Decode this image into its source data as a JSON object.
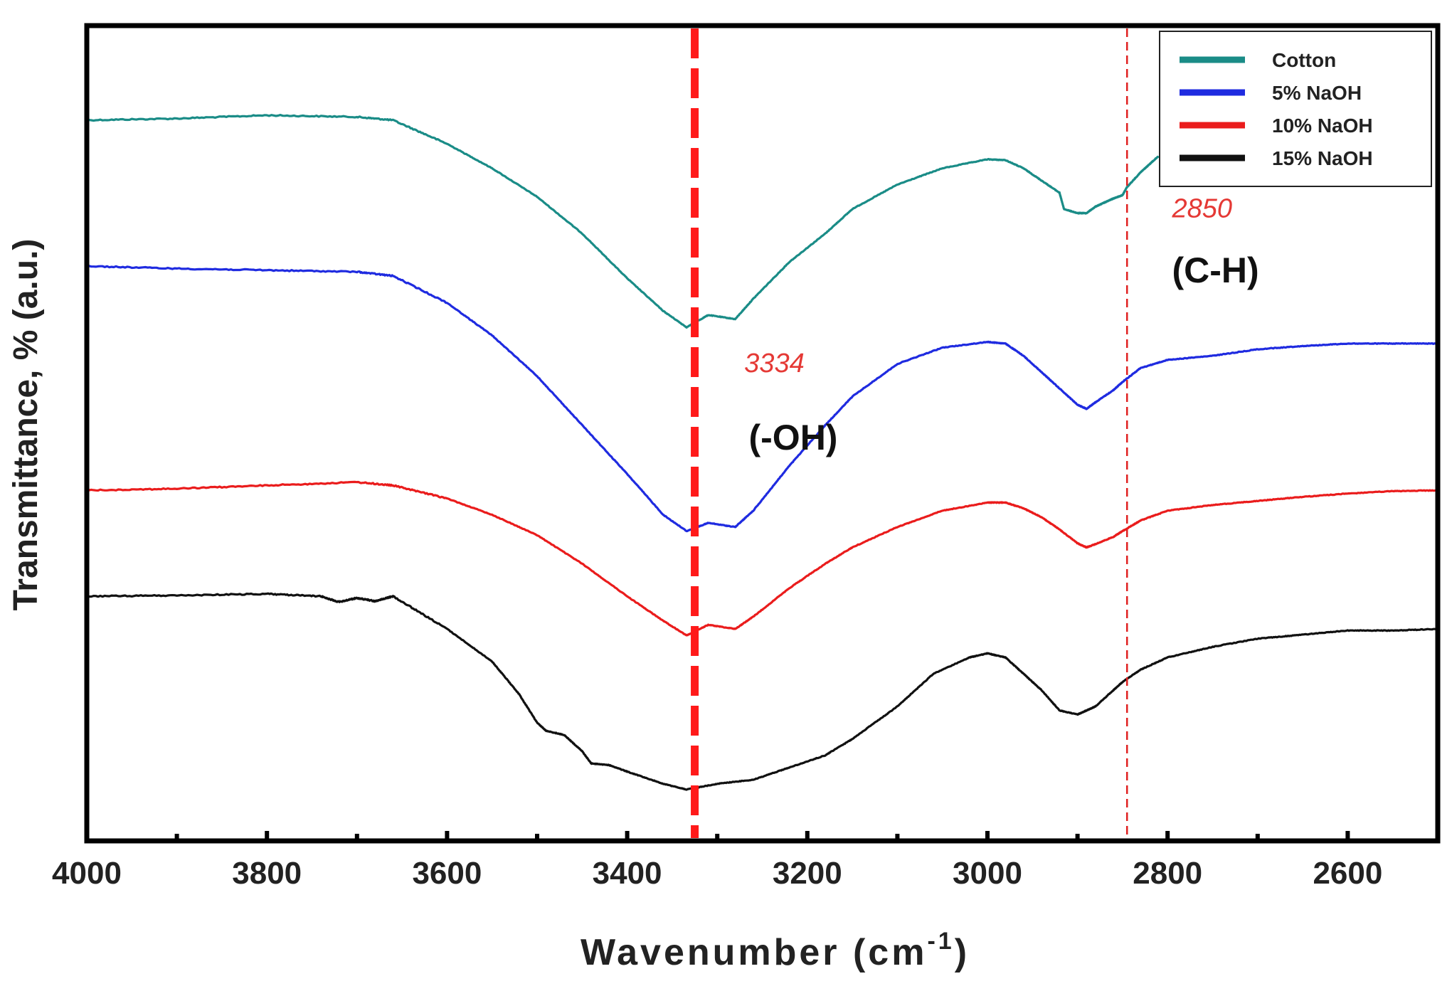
{
  "chart_data": {
    "type": "line",
    "title": "",
    "xlabel": "Wavenumber (cm",
    "xlabel_superscript": "-1",
    "xlabel_close": ")",
    "ylabel": "Transmittance, % (a.u.)",
    "xlim": [
      4000,
      2500
    ],
    "x_reversed": true,
    "ylim": [
      0,
      100
    ],
    "y_ticks_labeled": false,
    "grid": false,
    "x_ticks": [
      4000,
      3800,
      3600,
      3400,
      3200,
      3000,
      2800,
      2600
    ],
    "x_tick_labels": [
      "4000",
      "3800",
      "3600",
      "3400",
      "3200",
      "3000",
      "2800",
      "2600"
    ],
    "legend": {
      "position": "top-right",
      "entries": [
        "Cotton",
        "5% NaOH",
        "10% NaOH",
        "15% NaOH"
      ]
    },
    "series": [
      {
        "name": "Cotton",
        "color": "#1a8c87",
        "x": [
          4000,
          3900,
          3800,
          3700,
          3660,
          3600,
          3550,
          3500,
          3450,
          3400,
          3360,
          3334,
          3310,
          3280,
          3260,
          3220,
          3180,
          3150,
          3100,
          3050,
          3000,
          2980,
          2960,
          2940,
          2920,
          2915,
          2900,
          2890,
          2880,
          2870,
          2860,
          2850,
          2845,
          2830,
          2820,
          2810
        ],
        "y": [
          88.4,
          88.6,
          89.0,
          88.8,
          88.4,
          85.5,
          82.5,
          79.0,
          74.5,
          69.0,
          65.0,
          63.0,
          64.5,
          64.0,
          66.5,
          71.0,
          74.5,
          77.5,
          80.5,
          82.5,
          83.6,
          83.5,
          82.5,
          81.0,
          79.5,
          77.5,
          77.0,
          77.0,
          77.8,
          78.3,
          78.8,
          79.2,
          80.2,
          82.0,
          83.0,
          84.0
        ]
      },
      {
        "name": "5% NaOH",
        "color": "#1f2be0",
        "x": [
          4000,
          3900,
          3800,
          3700,
          3660,
          3600,
          3550,
          3500,
          3450,
          3400,
          3360,
          3334,
          3310,
          3280,
          3260,
          3220,
          3180,
          3150,
          3100,
          3050,
          3000,
          2980,
          2960,
          2940,
          2920,
          2900,
          2890,
          2880,
          2860,
          2850,
          2830,
          2800,
          2750,
          2700,
          2650,
          2600,
          2550,
          2500
        ],
        "y": [
          70.5,
          70.2,
          70.0,
          69.8,
          69.3,
          66.0,
          62.0,
          57.0,
          51.0,
          45.0,
          40.0,
          38.0,
          39.0,
          38.5,
          40.5,
          46.0,
          51.0,
          54.5,
          58.5,
          60.5,
          61.2,
          61.0,
          59.5,
          57.5,
          55.5,
          53.5,
          53.0,
          53.8,
          55.3,
          56.3,
          58.0,
          59.0,
          59.5,
          60.3,
          60.7,
          61.0,
          61.0,
          61.0
        ]
      },
      {
        "name": "10% NaOH",
        "color": "#ea1c1c",
        "x": [
          4000,
          3900,
          3800,
          3700,
          3660,
          3600,
          3550,
          3500,
          3450,
          3400,
          3360,
          3334,
          3310,
          3280,
          3260,
          3220,
          3180,
          3150,
          3100,
          3050,
          3000,
          2980,
          2960,
          2940,
          2920,
          2900,
          2890,
          2880,
          2860,
          2850,
          2830,
          2800,
          2750,
          2700,
          2650,
          2600,
          2550,
          2500
        ],
        "y": [
          43.0,
          43.2,
          43.6,
          44.0,
          43.6,
          42.0,
          40.0,
          37.5,
          34.0,
          30.0,
          27.0,
          25.2,
          26.5,
          26.0,
          27.5,
          31.0,
          34.0,
          36.0,
          38.5,
          40.5,
          41.5,
          41.5,
          40.8,
          39.7,
          38.2,
          36.5,
          36.0,
          36.4,
          37.3,
          38.0,
          39.3,
          40.5,
          41.2,
          41.7,
          42.2,
          42.6,
          42.9,
          43.0
        ]
      },
      {
        "name": "15% NaOH",
        "color": "#111111",
        "x": [
          4000,
          3900,
          3800,
          3740,
          3720,
          3700,
          3680,
          3660,
          3600,
          3550,
          3520,
          3500,
          3490,
          3470,
          3450,
          3440,
          3420,
          3400,
          3360,
          3334,
          3300,
          3260,
          3220,
          3180,
          3150,
          3100,
          3060,
          3020,
          3000,
          2980,
          2960,
          2940,
          2920,
          2900,
          2890,
          2880,
          2860,
          2850,
          2830,
          2800,
          2750,
          2700,
          2650,
          2600,
          2550,
          2500
        ],
        "y": [
          30.0,
          30.1,
          30.3,
          30.0,
          29.3,
          29.8,
          29.4,
          30.0,
          26.0,
          22.0,
          18.0,
          14.5,
          13.5,
          13.0,
          11.0,
          9.5,
          9.3,
          8.5,
          7.0,
          6.3,
          7.0,
          7.5,
          9.0,
          10.5,
          12.5,
          16.5,
          20.5,
          22.5,
          23.0,
          22.5,
          20.5,
          18.5,
          16.0,
          15.5,
          16.0,
          16.5,
          18.5,
          19.5,
          21.0,
          22.5,
          23.8,
          24.8,
          25.3,
          25.8,
          25.8,
          26.0
        ]
      }
    ],
    "reference_lines": [
      {
        "x": 3325,
        "style": "thick-dashed",
        "color": "#ff1a1a"
      },
      {
        "x": 2845,
        "style": "thin-dashed",
        "color": "#e02020"
      }
    ],
    "annotations": [
      {
        "text": "3334",
        "x": 3270,
        "y": 57.5,
        "color": "#e53935",
        "kind": "peak-number"
      },
      {
        "text": "(-OH)",
        "x": 3265,
        "y": 48.0,
        "color": "#111111",
        "kind": "peak-group"
      },
      {
        "text": "2850",
        "x": 2795,
        "y": 76.5,
        "color": "#e53935",
        "kind": "peak-number"
      },
      {
        "text": "(C-H)",
        "x": 2795,
        "y": 68.5,
        "color": "#111111",
        "kind": "peak-group"
      }
    ]
  }
}
